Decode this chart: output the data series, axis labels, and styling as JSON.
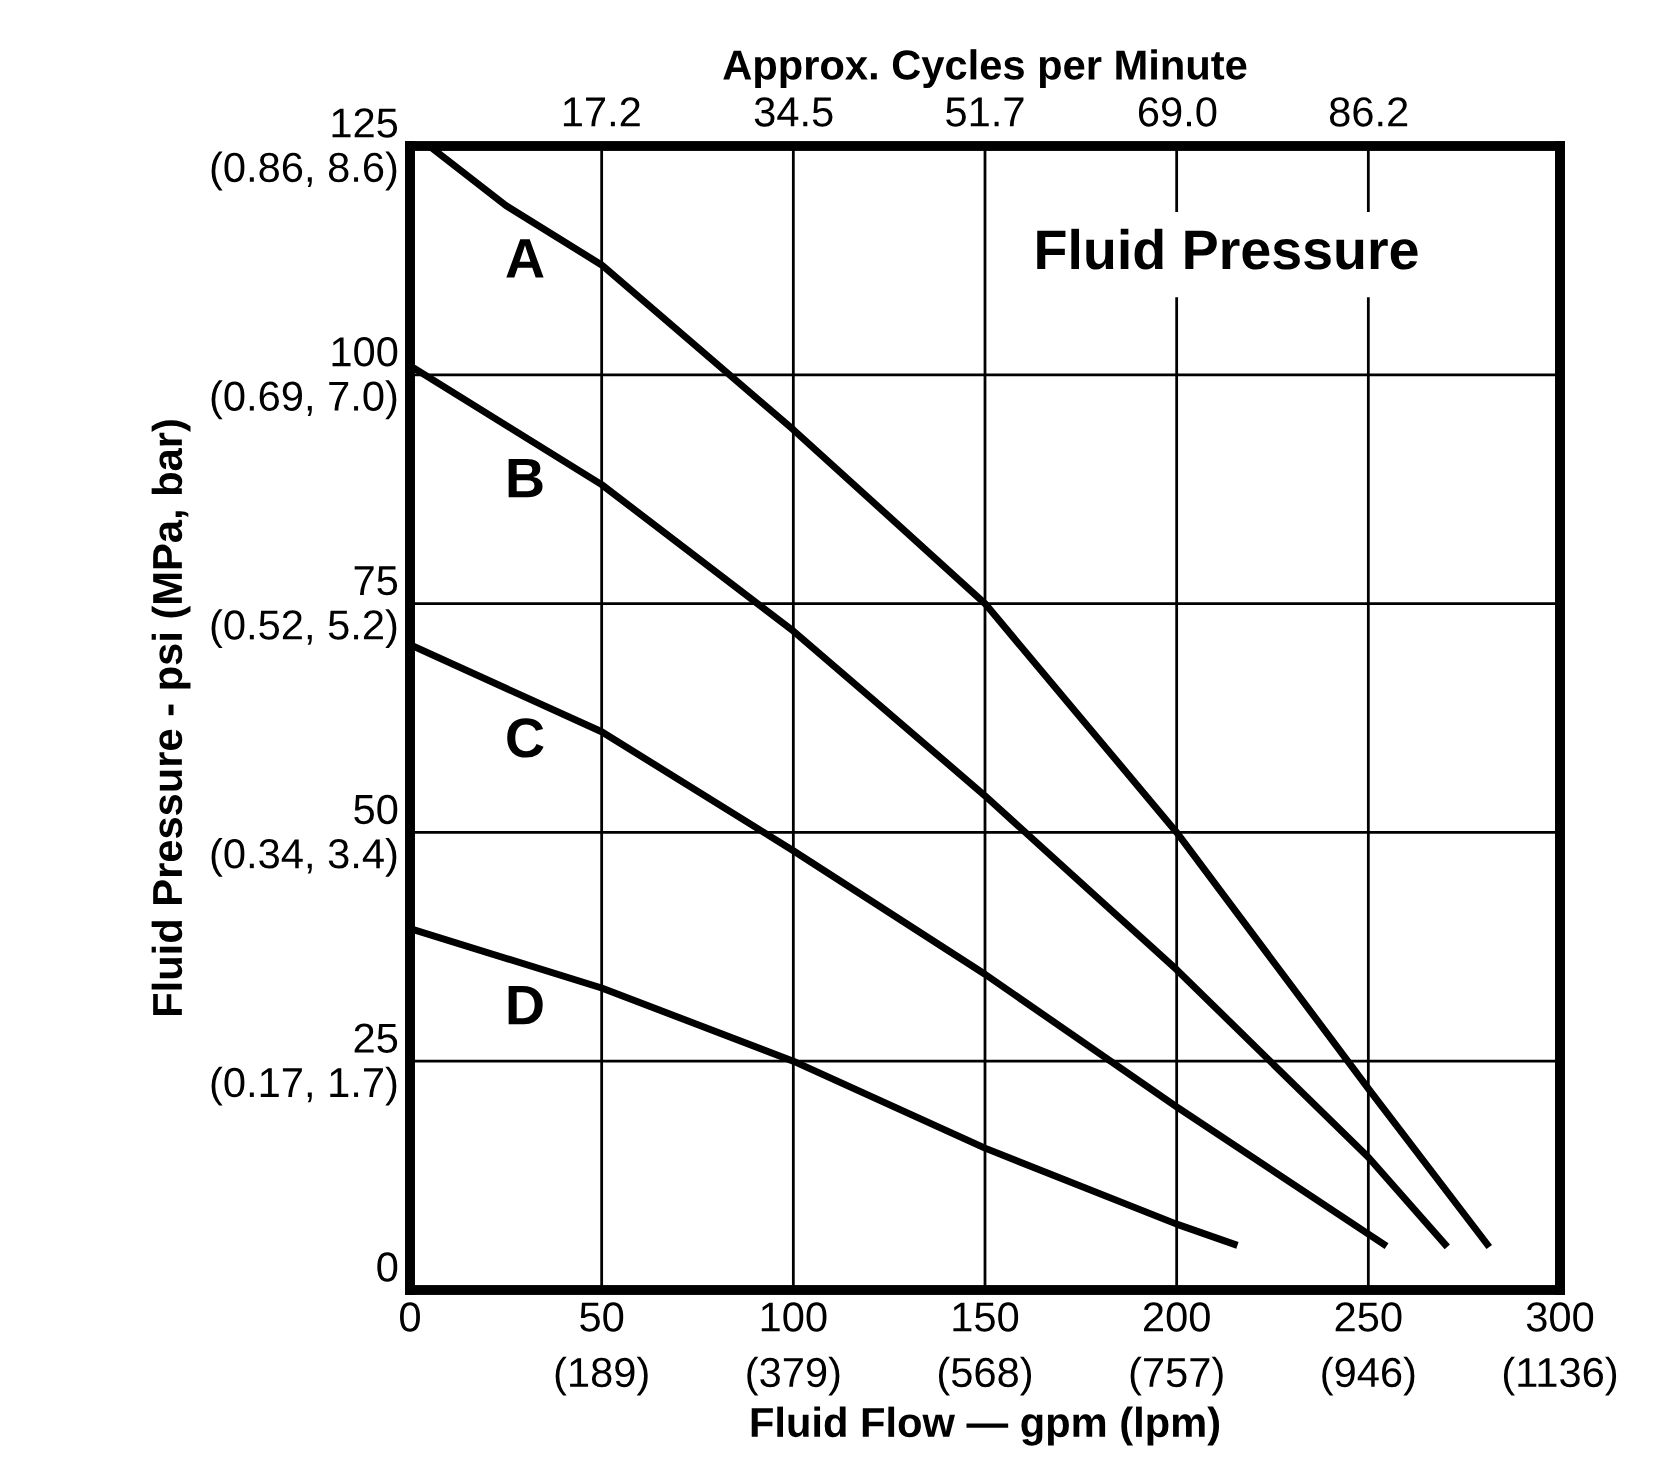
{
  "chart_data": {
    "type": "line",
    "xlabel": "Fluid Flow — gpm (lpm)",
    "ylabel": "Fluid Pressure - psi (MPa, bar)",
    "x2label": "Approx. Cycles per Minute",
    "xlim": [
      0,
      300
    ],
    "ylim": [
      0,
      125
    ],
    "x2lim": [
      0,
      103.4
    ],
    "xticks": [
      0,
      50,
      100,
      150,
      200,
      250,
      300
    ],
    "x2ticks": [
      17.2,
      34.5,
      51.7,
      {
        "value": 69,
        "label": "69.0"
      },
      86.2
    ],
    "yticks": [
      0,
      25,
      50,
      75,
      100,
      125
    ],
    "grid": true,
    "legend": false,
    "marker": "none",
    "line_style": "solid",
    "series": [
      {
        "color": "#000000",
        "x": [
          5,
          25,
          50,
          100,
          150,
          200,
          250,
          281
        ],
        "values": [
          125,
          118.5,
          112,
          94,
          75,
          50,
          22,
          5
        ]
      },
      {
        "color": "#000000",
        "x": [
          0,
          50,
          100,
          150,
          200,
          250,
          270
        ],
        "values": [
          101,
          88,
          72,
          54,
          35,
          14.5,
          5
        ]
      },
      {
        "color": "#000000",
        "x": [
          0,
          50,
          100,
          150,
          200,
          254
        ],
        "values": [
          70.5,
          61,
          48,
          34.5,
          20,
          5
        ]
      },
      {
        "color": "#000000",
        "x": [
          0,
          50,
          100,
          150,
          200,
          215
        ],
        "values": [
          39.5,
          33,
          25,
          15.5,
          7.2,
          5
        ]
      }
    ],
    "annotations": [
      "Fluid Pressure",
      "A",
      "B",
      "C",
      "D",
      "(0.17, 1.7)",
      "(0.34, 3.4)",
      "(0.52, 5.2)",
      "(0.69, 7.0)",
      "(0.86, 8.6)",
      "(189)",
      "(379)",
      "(568)",
      "(757)",
      "(946)",
      "(1136)"
    ]
  }
}
